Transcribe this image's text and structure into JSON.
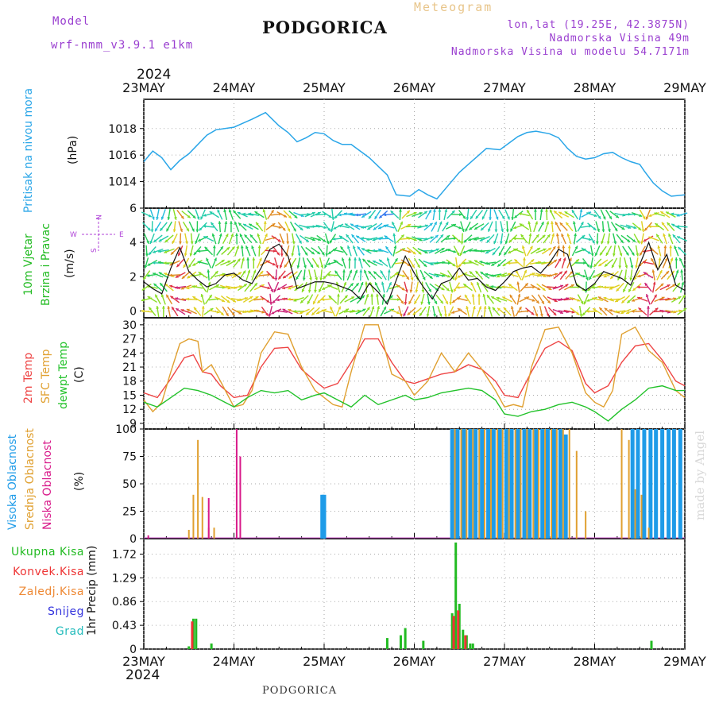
{
  "header": {
    "model_label": "Model",
    "model_name": "wrf-nmm_v3.9.1 e1km",
    "title": "PODGORICA",
    "meteogram": "Meteogram",
    "lonlat": "lon,lat (19.25E, 42.3875N)",
    "elevation": "Nadmorska Visina 49m",
    "model_elevation": "Nadmorska Visina u modelu 54.7171m"
  },
  "colors": {
    "pressure": "#2aa6e8",
    "wind_label": "#22bb22",
    "wind_dir": "#b044d8",
    "temp2m": "#ee4444",
    "sfc_temp": "#e0a030",
    "dewpt": "#22c22a",
    "high_cloud": "#1e9be8",
    "mid_cloud": "#e0a030",
    "low_cloud": "#d81a8a",
    "total_precip": "#22bb22",
    "conv_precip": "#ee3333",
    "frz_precip": "#ee8833",
    "snow": "#3333dd",
    "hail": "#22bbbb"
  },
  "time_axis": {
    "year_top": "2024",
    "year_bottom": "2024",
    "labels": [
      "23MAY",
      "24MAY",
      "25MAY",
      "26MAY",
      "27MAY",
      "28MAY",
      "29MAY"
    ]
  },
  "panels": {
    "pressure": {
      "label": "Pritisak na nivou mora",
      "unit": "(hPa)"
    },
    "wind": {
      "label1": "10m Vjetar",
      "label2": "Brzina i Pravac",
      "unit": "(m/s)",
      "compass": {
        "n": "N",
        "s": "S",
        "e": "E",
        "w": "W"
      }
    },
    "temperature": {
      "label1": "2m Temp",
      "label2": "SFC Temp",
      "label3": "dewpt Temp",
      "unit": "(C)"
    },
    "cloud": {
      "label1": "Visoka Oblacnost",
      "label2": "Srednja Oblacnost",
      "label3": "Niska Oblacnost",
      "unit": "(%)"
    },
    "precip": {
      "unit": "1hr Precip (mm)",
      "legend": [
        "Ukupna Kisa",
        "Konvek.Kisa",
        "Zaledj.Kisa",
        "Snijeg",
        "Grad"
      ]
    }
  },
  "signature": "made by Angel",
  "footer_title": "PODGORICA",
  "chart_data": [
    {
      "type": "line",
      "title": "",
      "xlabel": "",
      "ylabel": "(hPa)",
      "x_unit": "days since 23MAY 00UTC",
      "ylim": [
        1012.0,
        1020.2
      ],
      "yticks": [
        1014,
        1016,
        1018
      ],
      "series": [
        {
          "name": "Pritisak na nivou mora",
          "x": [
            0,
            0.1,
            0.2,
            0.3,
            0.4,
            0.5,
            0.6,
            0.7,
            0.8,
            0.9,
            1.0,
            1.1,
            1.2,
            1.35,
            1.5,
            1.6,
            1.7,
            1.8,
            1.9,
            2.0,
            2.1,
            2.2,
            2.3,
            2.5,
            2.7,
            2.8,
            2.95,
            3.05,
            3.15,
            3.25,
            3.35,
            3.5,
            3.6,
            3.7,
            3.8,
            3.95,
            4.05,
            4.15,
            4.25,
            4.35,
            4.5,
            4.6,
            4.7,
            4.8,
            4.9,
            5.0,
            5.1,
            5.2,
            5.3,
            5.4,
            5.5,
            5.55,
            5.65,
            5.75,
            5.85,
            6.0
          ],
          "values": [
            1015.5,
            1016.3,
            1015.8,
            1014.9,
            1015.6,
            1016.1,
            1016.8,
            1017.5,
            1017.9,
            1018.0,
            1018.1,
            1018.4,
            1018.7,
            1019.2,
            1018.2,
            1017.7,
            1017.0,
            1017.3,
            1017.7,
            1017.6,
            1017.1,
            1016.8,
            1016.8,
            1015.8,
            1014.5,
            1013.0,
            1012.9,
            1013.4,
            1013.0,
            1012.7,
            1013.5,
            1014.7,
            1015.3,
            1015.9,
            1016.5,
            1016.4,
            1016.9,
            1017.4,
            1017.7,
            1017.8,
            1017.6,
            1017.3,
            1016.5,
            1015.9,
            1015.7,
            1015.8,
            1016.1,
            1016.2,
            1015.8,
            1015.5,
            1015.3,
            1014.8,
            1013.9,
            1013.3,
            1012.9,
            1013.0
          ]
        }
      ]
    },
    {
      "type": "line",
      "title": "",
      "xlabel": "",
      "ylabel": "(m/s)",
      "x_unit": "days since 23MAY 00UTC",
      "ylim": [
        -0.4,
        6
      ],
      "yticks": [
        0,
        2,
        4,
        6
      ],
      "series": [
        {
          "name": "10m Vjetar",
          "x": [
            0,
            0.1,
            0.2,
            0.3,
            0.4,
            0.5,
            0.6,
            0.7,
            0.8,
            0.9,
            1.0,
            1.1,
            1.2,
            1.3,
            1.4,
            1.5,
            1.6,
            1.7,
            1.8,
            1.9,
            2.0,
            2.1,
            2.2,
            2.3,
            2.4,
            2.5,
            2.6,
            2.7,
            2.8,
            2.9,
            3.0,
            3.1,
            3.2,
            3.3,
            3.4,
            3.5,
            3.6,
            3.7,
            3.8,
            3.9,
            4.0,
            4.1,
            4.2,
            4.3,
            4.4,
            4.5,
            4.6,
            4.7,
            4.8,
            4.9,
            5.0,
            5.1,
            5.2,
            5.3,
            5.4,
            5.5,
            5.6,
            5.7,
            5.8,
            5.9,
            6.0
          ],
          "values": [
            1.7,
            1.3,
            1.0,
            2.5,
            3.7,
            2.3,
            1.8,
            1.4,
            1.6,
            2.1,
            2.2,
            1.8,
            1.6,
            2.5,
            3.6,
            3.9,
            3.2,
            1.3,
            1.5,
            1.7,
            1.7,
            1.6,
            1.4,
            1.2,
            0.7,
            1.6,
            1.1,
            0.4,
            1.8,
            3.2,
            2.2,
            1.4,
            0.7,
            1.6,
            1.8,
            2.5,
            1.8,
            1.9,
            1.4,
            1.2,
            1.7,
            2.3,
            2.5,
            2.6,
            2.2,
            2.8,
            3.6,
            3.3,
            1.5,
            1.2,
            1.6,
            2.3,
            2.1,
            1.9,
            1.5,
            2.7,
            4.0,
            2.4,
            3.3,
            1.5,
            1.2
          ]
        }
      ],
      "direction_label": "Pravac"
    },
    {
      "type": "line",
      "title": "",
      "xlabel": "",
      "ylabel": "(C)",
      "x_unit": "days since 23MAY 00UTC",
      "ylim": [
        7.8,
        31.5
      ],
      "yticks": [
        9,
        12,
        15,
        18,
        21,
        24,
        27,
        30
      ],
      "series": [
        {
          "name": "2m Temp",
          "x": [
            0,
            0.15,
            0.3,
            0.45,
            0.55,
            0.65,
            0.75,
            0.85,
            1.0,
            1.15,
            1.3,
            1.45,
            1.6,
            1.75,
            1.9,
            2.0,
            2.15,
            2.3,
            2.45,
            2.6,
            2.75,
            2.9,
            3.0,
            3.15,
            3.3,
            3.45,
            3.6,
            3.75,
            3.9,
            4.0,
            4.15,
            4.3,
            4.45,
            4.6,
            4.75,
            4.9,
            5.0,
            5.15,
            5.3,
            5.45,
            5.6,
            5.75,
            5.9,
            6.0
          ],
          "values": [
            15.5,
            14.5,
            18.5,
            23.0,
            23.6,
            20.0,
            19.5,
            17.0,
            14.5,
            15.0,
            21.0,
            25.0,
            25.2,
            20.5,
            18.0,
            16.5,
            17.5,
            22.0,
            27.0,
            27.0,
            22.0,
            18.0,
            17.5,
            18.5,
            19.5,
            20.0,
            21.5,
            20.5,
            18.0,
            15.0,
            14.5,
            20.0,
            25.0,
            26.5,
            24.5,
            17.5,
            15.5,
            17.0,
            22.0,
            25.5,
            26.0,
            22.5,
            18.0,
            17.0
          ]
        },
        {
          "name": "SFC Temp",
          "x": [
            0,
            0.1,
            0.2,
            0.3,
            0.4,
            0.5,
            0.6,
            0.65,
            0.75,
            0.85,
            1.0,
            1.1,
            1.2,
            1.3,
            1.45,
            1.6,
            1.75,
            1.9,
            2.0,
            2.1,
            2.2,
            2.3,
            2.45,
            2.6,
            2.75,
            2.9,
            3.0,
            3.15,
            3.3,
            3.45,
            3.6,
            3.75,
            3.9,
            4.0,
            4.1,
            4.2,
            4.3,
            4.45,
            4.6,
            4.75,
            4.9,
            5.0,
            5.1,
            5.2,
            5.3,
            5.45,
            5.6,
            5.75,
            5.9,
            6.0
          ],
          "values": [
            14.0,
            11.5,
            13.5,
            20.0,
            26.0,
            27.0,
            26.5,
            20.0,
            21.5,
            18.0,
            12.5,
            13.0,
            16.0,
            24.0,
            28.5,
            28.0,
            21.0,
            16.0,
            14.5,
            13.0,
            12.5,
            20.0,
            30.0,
            30.0,
            19.5,
            18.0,
            15.0,
            18.0,
            24.0,
            20.0,
            24.0,
            20.5,
            16.0,
            12.5,
            13.0,
            12.5,
            21.0,
            29.0,
            29.5,
            24.0,
            15.5,
            13.5,
            12.5,
            16.0,
            28.0,
            29.5,
            24.5,
            22.0,
            16.0,
            14.5
          ]
        },
        {
          "name": "dewpt Temp",
          "x": [
            0,
            0.15,
            0.3,
            0.45,
            0.6,
            0.75,
            0.9,
            1.0,
            1.15,
            1.3,
            1.45,
            1.6,
            1.75,
            1.9,
            2.0,
            2.15,
            2.3,
            2.45,
            2.6,
            2.75,
            2.9,
            3.0,
            3.15,
            3.3,
            3.45,
            3.6,
            3.75,
            3.9,
            4.0,
            4.15,
            4.3,
            4.45,
            4.6,
            4.75,
            4.9,
            5.0,
            5.15,
            5.3,
            5.45,
            5.6,
            5.75,
            5.9,
            6.0
          ],
          "values": [
            13.5,
            12.5,
            14.5,
            16.5,
            16.0,
            15.0,
            13.5,
            12.5,
            14.5,
            16.0,
            15.5,
            16.0,
            14.0,
            15.0,
            15.5,
            14.0,
            12.5,
            15.0,
            13.0,
            14.0,
            15.0,
            14.0,
            14.5,
            15.5,
            16.0,
            16.5,
            16.0,
            14.0,
            11.0,
            10.5,
            11.5,
            12.0,
            13.0,
            13.5,
            12.5,
            11.5,
            9.5,
            12.0,
            14.0,
            16.5,
            17.0,
            16.0,
            16.0
          ]
        }
      ]
    },
    {
      "type": "bar",
      "title": "",
      "xlabel": "",
      "ylabel": "(%)",
      "x_unit": "days since 23MAY 00UTC",
      "ylim": [
        0,
        100
      ],
      "yticks": [
        0,
        25,
        50,
        75,
        100
      ],
      "series": [
        {
          "name": "Visoka Oblacnost",
          "x": [
            1.98,
            2.0,
            3.42,
            3.48,
            3.55,
            3.62,
            3.68,
            3.75,
            3.82,
            3.88,
            3.95,
            4.02,
            4.08,
            4.15,
            4.22,
            4.28,
            4.35,
            4.42,
            4.48,
            4.55,
            4.62,
            4.68,
            4.75,
            4.82,
            4.88,
            4.95,
            5.02,
            5.08,
            5.15,
            5.22,
            5.28,
            5.35,
            5.42,
            5.48,
            5.55,
            5.62,
            5.68,
            5.75,
            5.82,
            5.88,
            5.95
          ],
          "values": [
            40,
            40,
            100,
            100,
            100,
            100,
            100,
            100,
            100,
            100,
            100,
            100,
            100,
            100,
            100,
            100,
            100,
            100,
            100,
            100,
            100,
            95,
            0,
            0,
            0,
            0,
            0,
            0,
            0,
            0,
            0,
            0,
            100,
            100,
            100,
            100,
            100,
            100,
            100,
            100,
            100
          ]
        },
        {
          "name": "Srednja Oblacnost",
          "x": [
            0.5,
            0.55,
            0.6,
            0.65,
            0.72,
            0.78,
            3.45,
            3.52,
            3.58,
            3.65,
            3.72,
            3.78,
            3.85,
            3.92,
            3.98,
            4.05,
            4.12,
            4.18,
            4.25,
            4.32,
            4.38,
            4.45,
            4.52,
            4.58,
            4.65,
            4.72,
            4.8,
            4.9,
            5.3,
            5.38,
            5.45,
            5.52,
            5.6
          ],
          "values": [
            8,
            40,
            90,
            38,
            10,
            10,
            100,
            100,
            100,
            100,
            100,
            100,
            100,
            100,
            100,
            100,
            100,
            100,
            100,
            100,
            100,
            100,
            100,
            100,
            100,
            100,
            80,
            25,
            100,
            90,
            45,
            40,
            10
          ]
        },
        {
          "name": "Niska Oblacnost",
          "x": [
            0.05,
            0.72,
            1.03,
            1.07
          ],
          "values": [
            3,
            37,
            100,
            75
          ]
        }
      ]
    },
    {
      "type": "bar",
      "title": "",
      "xlabel": "",
      "ylabel": "1hr Precip (mm)",
      "x_unit": "days since 23MAY 00UTC",
      "ylim": [
        0,
        2.0
      ],
      "yticks": [
        0,
        0.43,
        0.86,
        1.29,
        1.72
      ],
      "series": [
        {
          "name": "Ukupna Kisa",
          "x": [
            0.5,
            0.55,
            0.58,
            0.75,
            2.7,
            2.85,
            2.9,
            3.1,
            3.42,
            3.46,
            3.5,
            3.54,
            3.58,
            3.62,
            3.65,
            5.63
          ],
          "values": [
            0.05,
            0.55,
            0.55,
            0.1,
            0.2,
            0.25,
            0.38,
            0.15,
            0.65,
            1.93,
            0.82,
            0.35,
            0.25,
            0.1,
            0.1,
            0.15
          ]
        },
        {
          "name": "Konvek.Kisa",
          "x": [
            0.55,
            3.45,
            3.5,
            3.58
          ],
          "values": [
            0.5,
            0.6,
            0.7,
            0.25
          ]
        }
      ]
    }
  ]
}
